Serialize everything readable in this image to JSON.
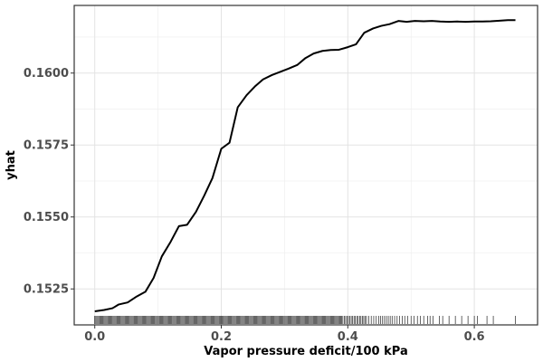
{
  "chart_data": {
    "type": "line",
    "title": "",
    "xlabel": "Vapor pressure deficit/100 kPa",
    "ylabel": "yhat",
    "xlim": [
      -0.0325,
      0.7
    ],
    "ylim": [
      0.15125,
      0.16235
    ],
    "x_ticks": [
      0.0,
      0.2,
      0.4,
      0.6
    ],
    "x_tick_labels": [
      "0.0",
      "0.2",
      "0.4",
      "0.6"
    ],
    "y_ticks": [
      0.1525,
      0.155,
      0.1575,
      0.16
    ],
    "y_tick_labels": [
      "0.1525",
      "0.1550",
      "0.1575",
      "0.1600"
    ],
    "grid": true,
    "legend": "none",
    "line_color": "#000000",
    "series": [
      {
        "x": [
          0.0,
          0.015,
          0.028,
          0.038,
          0.052,
          0.065,
          0.08,
          0.093,
          0.106,
          0.12,
          0.133,
          0.146,
          0.16,
          0.173,
          0.186,
          0.2,
          0.213,
          0.226,
          0.24,
          0.253,
          0.266,
          0.28,
          0.293,
          0.306,
          0.32,
          0.333,
          0.346,
          0.36,
          0.373,
          0.386,
          0.4,
          0.413,
          0.426,
          0.44,
          0.453,
          0.466,
          0.48,
          0.493,
          0.506,
          0.52,
          0.533,
          0.546,
          0.56,
          0.573,
          0.586,
          0.6,
          0.613,
          0.626,
          0.64,
          0.653,
          0.665
        ],
        "y": [
          0.15172,
          0.15177,
          0.15183,
          0.15196,
          0.15203,
          0.15222,
          0.1524,
          0.15288,
          0.15363,
          0.15414,
          0.15468,
          0.15473,
          0.15518,
          0.15574,
          0.15635,
          0.15737,
          0.15758,
          0.15881,
          0.15923,
          0.15953,
          0.15978,
          0.15993,
          0.16004,
          0.16015,
          0.16028,
          0.16052,
          0.16068,
          0.16077,
          0.1608,
          0.16081,
          0.1609,
          0.161,
          0.1614,
          0.16155,
          0.16164,
          0.1617,
          0.16181,
          0.16178,
          0.16181,
          0.1618,
          0.16181,
          0.16179,
          0.16178,
          0.16179,
          0.16178,
          0.16179,
          0.16179,
          0.1618,
          0.16182,
          0.16184,
          0.16184
        ]
      }
    ],
    "rug": {
      "dense_ranges": [
        [
          0.0,
          0.39
        ],
        [
          0.39,
          0.43
        ]
      ],
      "sparse_x": [
        0.433,
        0.437,
        0.441,
        0.445,
        0.449,
        0.452,
        0.455,
        0.458,
        0.461,
        0.464,
        0.467,
        0.47,
        0.474,
        0.478,
        0.482,
        0.486,
        0.49,
        0.495,
        0.5,
        0.505,
        0.51,
        0.515,
        0.52,
        0.526,
        0.53,
        0.535,
        0.545,
        0.55,
        0.56,
        0.57,
        0.58,
        0.59,
        0.6,
        0.605,
        0.62,
        0.63,
        0.665
      ]
    }
  }
}
